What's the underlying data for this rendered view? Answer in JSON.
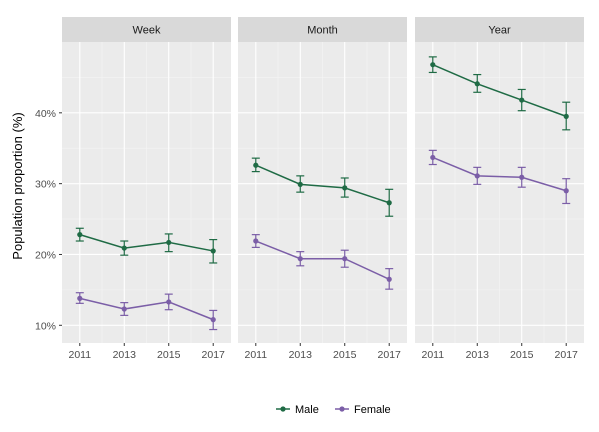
{
  "chart_data": {
    "type": "line",
    "ylabel": "Population proportion (%)",
    "y_ticks": [
      "10%",
      "20%",
      "30%",
      "40%"
    ],
    "y_tick_values": [
      10,
      20,
      30,
      40
    ],
    "ylim": [
      7.5,
      50
    ],
    "x": [
      2011,
      2013,
      2015,
      2017
    ],
    "x_ticks": [
      "2011",
      "2013",
      "2015",
      "2017"
    ],
    "xlim": [
      2010.2,
      2017.8
    ],
    "grid": true,
    "legend_position": "bottom",
    "colors": {
      "Male": "#1f6b45",
      "Female": "#7b5ea7"
    },
    "panels": [
      {
        "title": "Week",
        "series": [
          {
            "name": "Male",
            "values": [
              22.8,
              20.9,
              21.7,
              20.5
            ],
            "lower": [
              21.9,
              19.9,
              20.4,
              18.8
            ],
            "upper": [
              23.7,
              21.9,
              22.9,
              22.1
            ]
          },
          {
            "name": "Female",
            "values": [
              13.8,
              12.3,
              13.3,
              10.8
            ],
            "lower": [
              13.1,
              11.4,
              12.2,
              9.4
            ],
            "upper": [
              14.6,
              13.2,
              14.4,
              12.1
            ]
          }
        ]
      },
      {
        "title": "Month",
        "series": [
          {
            "name": "Male",
            "values": [
              32.6,
              29.9,
              29.4,
              27.3
            ],
            "lower": [
              31.7,
              28.8,
              28.1,
              25.4
            ],
            "upper": [
              33.6,
              31.1,
              30.8,
              29.2
            ]
          },
          {
            "name": "Female",
            "values": [
              21.9,
              19.4,
              19.4,
              16.5
            ],
            "lower": [
              21.0,
              18.4,
              18.2,
              15.1
            ],
            "upper": [
              22.8,
              20.4,
              20.6,
              18.0
            ]
          }
        ]
      },
      {
        "title": "Year",
        "series": [
          {
            "name": "Male",
            "values": [
              46.8,
              44.1,
              41.8,
              39.5
            ],
            "lower": [
              45.7,
              42.9,
              40.3,
              37.6
            ],
            "upper": [
              47.9,
              45.4,
              43.3,
              41.5
            ]
          },
          {
            "name": "Female",
            "values": [
              33.7,
              31.1,
              30.9,
              29.0
            ],
            "lower": [
              32.7,
              29.9,
              29.5,
              27.2
            ],
            "upper": [
              34.7,
              32.3,
              32.3,
              30.7
            ]
          }
        ]
      }
    ],
    "legend": [
      "Male",
      "Female"
    ]
  }
}
